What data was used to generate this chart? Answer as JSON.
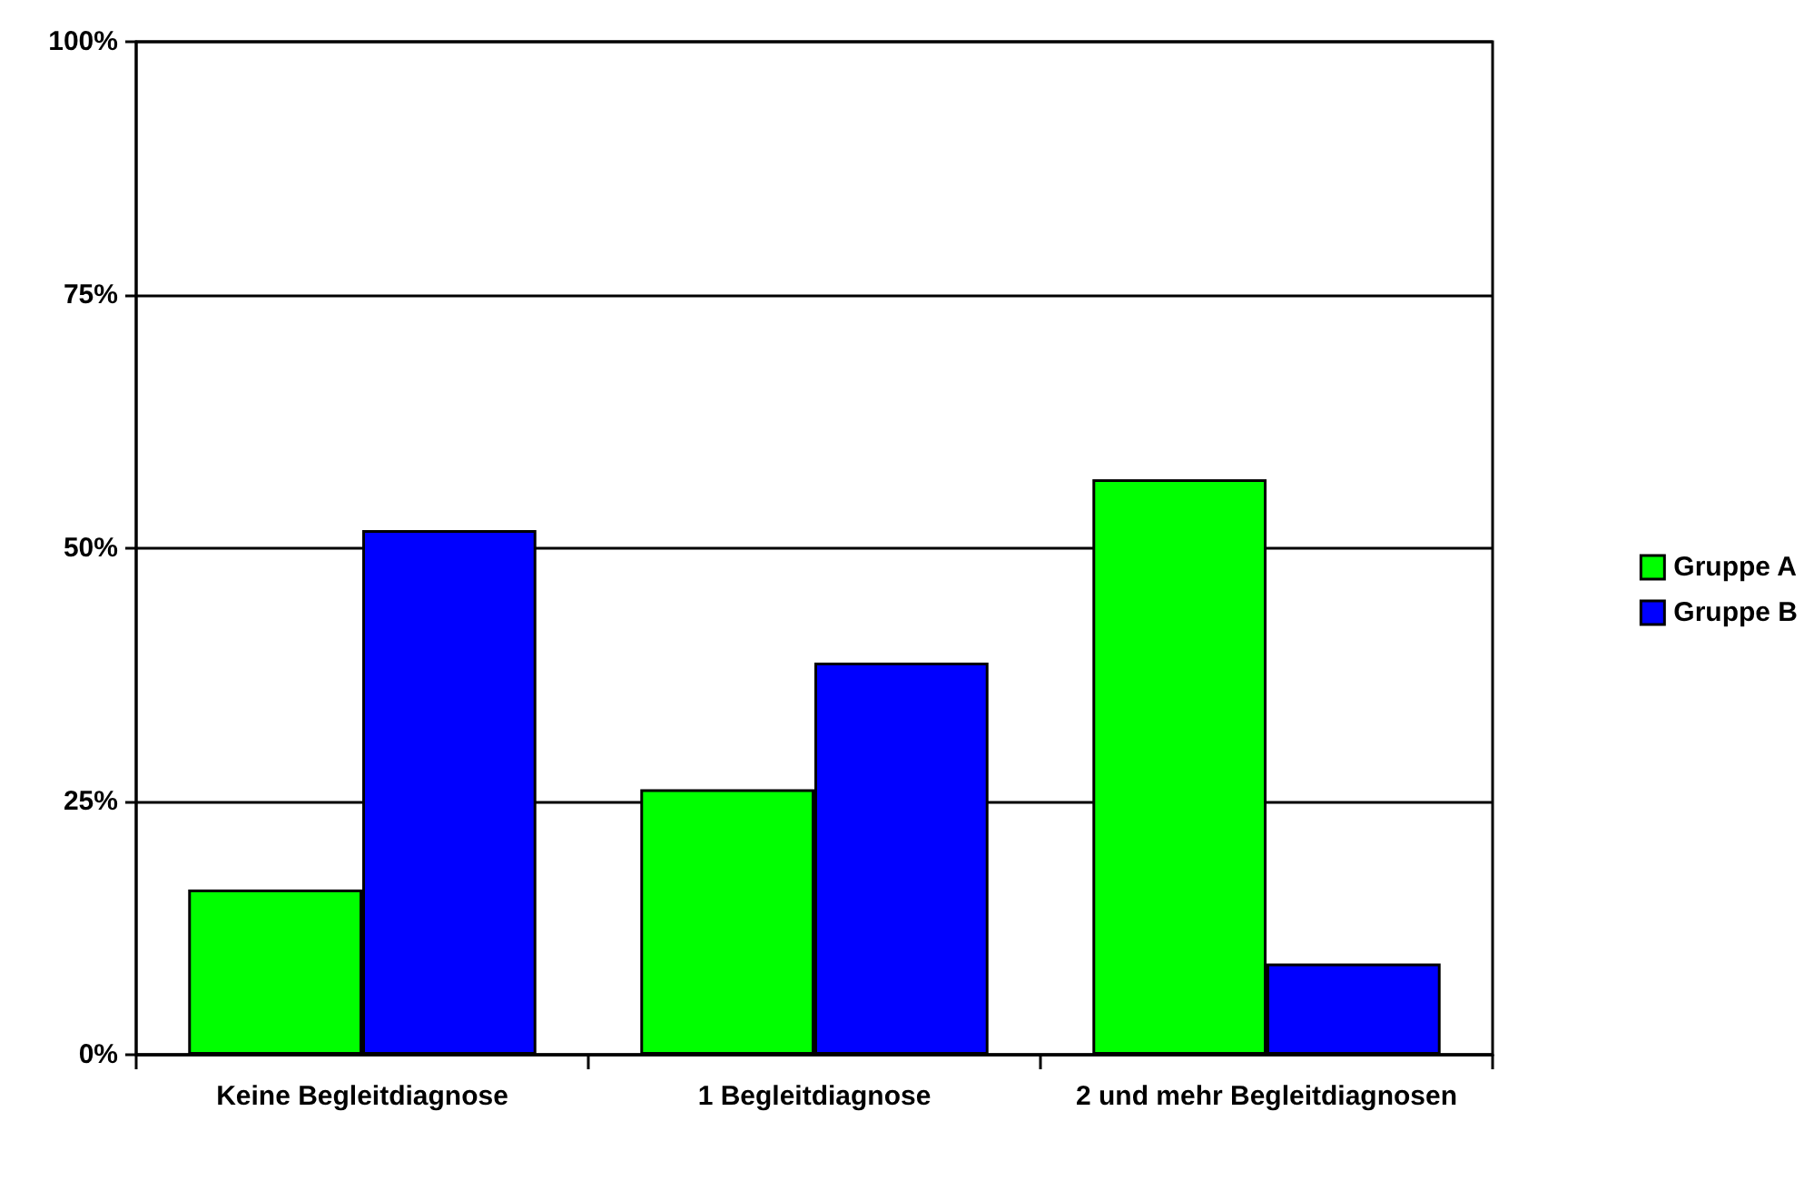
{
  "chart_data": {
    "type": "bar",
    "categories": [
      "Keine Begleitdiagnose",
      "1 Begleitdiagnose",
      "2 und mehr Begleitdiagnosen"
    ],
    "series": [
      {
        "name": "Gruppe A",
        "color": "#00ff00",
        "values": [
          16.3,
          26.2,
          56.8
        ]
      },
      {
        "name": "Gruppe B",
        "color": "#0000ff",
        "values": [
          51.8,
          38.7,
          9.0
        ]
      }
    ],
    "ylim": [
      0,
      100
    ],
    "yticks": [
      {
        "value": 0,
        "label": "0%"
      },
      {
        "value": 25,
        "label": "25%"
      },
      {
        "value": 50,
        "label": "50%"
      },
      {
        "value": 75,
        "label": "75%"
      },
      {
        "value": 100,
        "label": "100%"
      }
    ],
    "grid": "y",
    "legend": "right"
  }
}
